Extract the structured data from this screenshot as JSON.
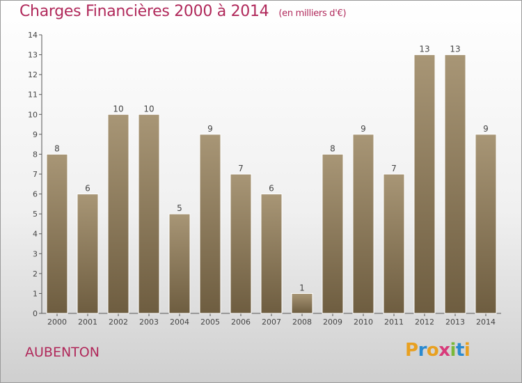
{
  "title": "Charges Financières 2000 à 2014",
  "unit": "(en milliers d'€)",
  "location": "AUBENTON",
  "logo": {
    "letters": [
      {
        "ch": "P",
        "color": "#e8a020"
      },
      {
        "ch": "r",
        "color": "#2a8ad0"
      },
      {
        "ch": "o",
        "color": "#e8a020"
      },
      {
        "ch": "x",
        "color": "#d83a7a"
      },
      {
        "ch": "i",
        "color": "#7ab83a"
      },
      {
        "ch": "t",
        "color": "#2a8ad0"
      },
      {
        "ch": "i",
        "color": "#e8a020"
      }
    ]
  },
  "chart_data": {
    "type": "bar",
    "categories": [
      "2000",
      "2001",
      "2002",
      "2003",
      "2004",
      "2005",
      "2006",
      "2007",
      "2008",
      "2009",
      "2010",
      "2011",
      "2012",
      "2013",
      "2014"
    ],
    "values": [
      8,
      6,
      10,
      10,
      5,
      9,
      7,
      6,
      1,
      8,
      9,
      7,
      13,
      13,
      9
    ],
    "ylim": [
      0,
      14
    ],
    "yticks": [
      0,
      1,
      2,
      3,
      4,
      5,
      6,
      7,
      8,
      9,
      10,
      11,
      12,
      13,
      14
    ],
    "colors": {
      "bar_top": "#a89676",
      "bar_bottom": "#6e5d40",
      "text": "#444444",
      "axis": "#555555"
    },
    "grid": false
  }
}
